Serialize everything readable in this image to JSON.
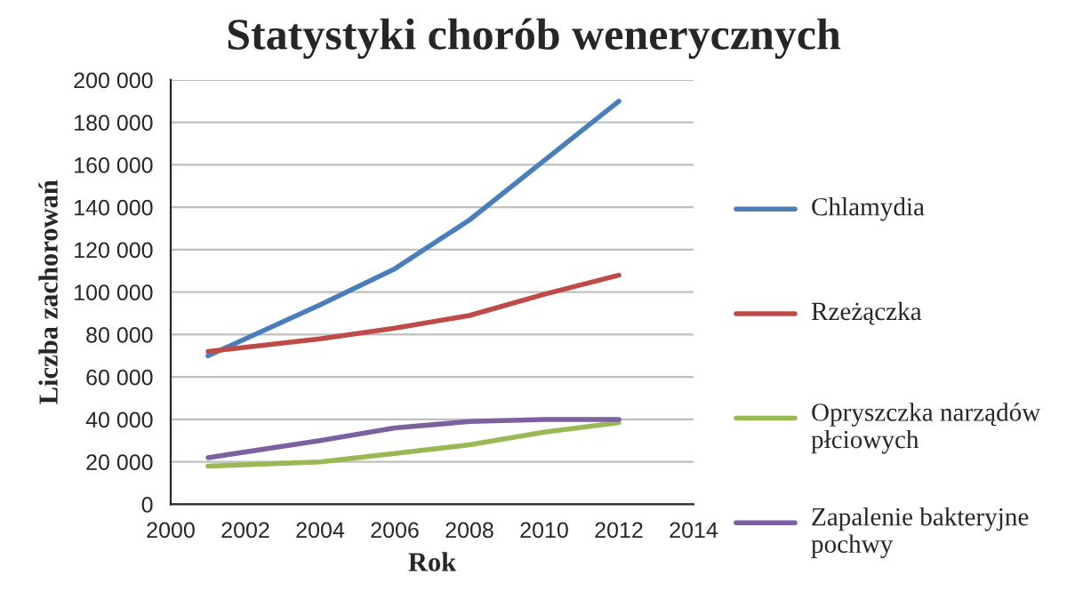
{
  "chart_data": {
    "type": "line",
    "title": "Statystyki chorób wenerycznych",
    "xlabel": "Rok",
    "ylabel": "Liczba zachorowań",
    "x": [
      2001,
      2004,
      2006,
      2008,
      2010,
      2012
    ],
    "series": [
      {
        "name": "Chlamydia",
        "color": "#4a7ebb",
        "values": [
          70000,
          94000,
          111000,
          134000,
          162000,
          190000
        ]
      },
      {
        "name": "Rzeżączka",
        "color": "#be4b48",
        "values": [
          72000,
          78000,
          83000,
          89000,
          99000,
          108000
        ]
      },
      {
        "name": "Opryszczka narządów płciowych",
        "color": "#98b954",
        "values": [
          18000,
          20000,
          24000,
          28000,
          34000,
          38500
        ]
      },
      {
        "name": "Zapalenie bakteryjne pochwy",
        "color": "#7d60a0",
        "values": [
          22000,
          30000,
          36000,
          39000,
          40000,
          40000
        ]
      }
    ],
    "xlim": [
      2000,
      2014
    ],
    "xticks": [
      2000,
      2002,
      2004,
      2006,
      2008,
      2010,
      2012,
      2014
    ],
    "ylim": [
      0,
      200000
    ],
    "yticks": [
      {
        "value": 0,
        "label": "0"
      },
      {
        "value": 20000,
        "label": "20 000"
      },
      {
        "value": 40000,
        "label": "40 000"
      },
      {
        "value": 60000,
        "label": "60 000"
      },
      {
        "value": 80000,
        "label": "80 000"
      },
      {
        "value": 100000,
        "label": "100 000"
      },
      {
        "value": 120000,
        "label": "120 000"
      },
      {
        "value": 140000,
        "label": "140 000"
      },
      {
        "value": 160000,
        "label": "160 000"
      },
      {
        "value": 180000,
        "label": "180 000"
      },
      {
        "value": 200000,
        "label": "200 000"
      }
    ],
    "grid": "y",
    "legend": "right",
    "marker": "none",
    "line_style": "solid"
  }
}
